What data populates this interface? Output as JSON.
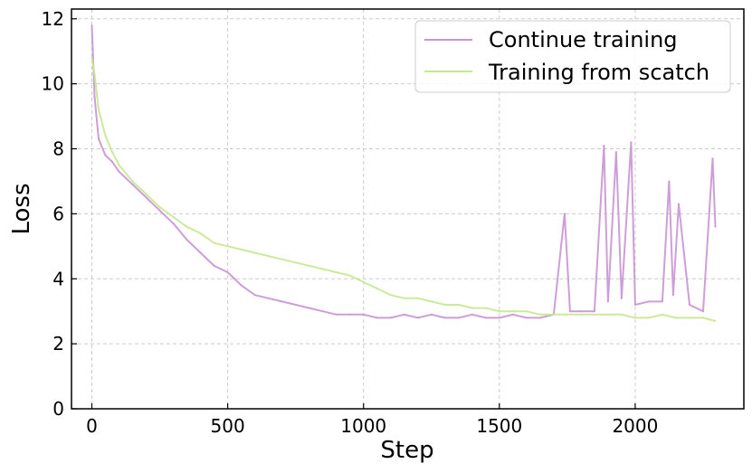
{
  "chart_data": {
    "type": "line",
    "xlabel": "Step",
    "ylabel": "Loss",
    "xlim": [
      -75,
      2400
    ],
    "ylim": [
      0,
      12.3
    ],
    "xticks": [
      "0",
      "500",
      "1000",
      "1500",
      "2000"
    ],
    "xtick_values": [
      0,
      500,
      1000,
      1500,
      2000
    ],
    "yticks": [
      "0",
      "2",
      "4",
      "6",
      "8",
      "10",
      "12"
    ],
    "ytick_values": [
      0,
      2,
      4,
      6,
      8,
      10,
      12
    ],
    "grid": true,
    "legend_position": "top-right",
    "series": [
      {
        "name": "Continue training",
        "color": "#c994d4",
        "x": [
          0,
          10,
          25,
          50,
          75,
          100,
          150,
          200,
          250,
          300,
          350,
          400,
          450,
          500,
          550,
          600,
          650,
          700,
          750,
          800,
          850,
          900,
          950,
          1000,
          1050,
          1100,
          1150,
          1200,
          1250,
          1300,
          1350,
          1400,
          1450,
          1500,
          1550,
          1600,
          1650,
          1700,
          1740,
          1760,
          1800,
          1850,
          1885,
          1900,
          1930,
          1950,
          1985,
          2000,
          2050,
          2100,
          2125,
          2140,
          2160,
          2200,
          2250,
          2285,
          2295
        ],
        "y": [
          11.8,
          9.6,
          8.3,
          7.8,
          7.6,
          7.3,
          6.9,
          6.5,
          6.1,
          5.7,
          5.2,
          4.8,
          4.4,
          4.2,
          3.8,
          3.5,
          3.4,
          3.3,
          3.2,
          3.1,
          3.0,
          2.9,
          2.9,
          2.9,
          2.8,
          2.8,
          2.9,
          2.8,
          2.9,
          2.8,
          2.8,
          2.9,
          2.8,
          2.8,
          2.9,
          2.8,
          2.8,
          2.9,
          6.0,
          3.0,
          3.0,
          3.0,
          8.1,
          3.3,
          7.9,
          3.4,
          8.2,
          3.2,
          3.3,
          3.3,
          7.0,
          3.5,
          6.3,
          3.2,
          3.0,
          7.7,
          5.6
        ]
      },
      {
        "name": "Training from scatch",
        "color": "#c6e88f",
        "x": [
          0,
          10,
          25,
          50,
          75,
          100,
          150,
          200,
          250,
          300,
          350,
          400,
          450,
          500,
          550,
          600,
          650,
          700,
          750,
          800,
          850,
          900,
          950,
          1000,
          1050,
          1100,
          1150,
          1200,
          1250,
          1300,
          1350,
          1400,
          1450,
          1500,
          1550,
          1600,
          1650,
          1700,
          1750,
          1800,
          1850,
          1900,
          1950,
          2000,
          2050,
          2100,
          2150,
          2200,
          2250,
          2295
        ],
        "y": [
          10.8,
          10.3,
          9.2,
          8.4,
          7.9,
          7.5,
          7.0,
          6.6,
          6.2,
          5.9,
          5.6,
          5.4,
          5.1,
          5.0,
          4.9,
          4.8,
          4.7,
          4.6,
          4.5,
          4.4,
          4.3,
          4.2,
          4.1,
          3.9,
          3.7,
          3.5,
          3.4,
          3.4,
          3.3,
          3.2,
          3.2,
          3.1,
          3.1,
          3.0,
          3.0,
          3.0,
          2.9,
          2.9,
          2.9,
          2.9,
          2.9,
          2.9,
          2.9,
          2.8,
          2.8,
          2.9,
          2.8,
          2.8,
          2.8,
          2.7
        ]
      }
    ]
  }
}
